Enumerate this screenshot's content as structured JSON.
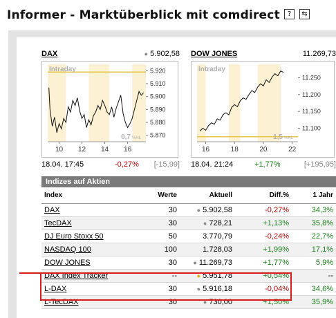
{
  "header": {
    "title": "Informer - Marktüberblick mit comdirect",
    "help_icon": "?",
    "switch_icon": "⇆"
  },
  "charts": [
    {
      "name": "DAX",
      "value": "5.902,58",
      "label": "Intraday",
      "y_ticks": [
        "5.920",
        "5.910",
        "5.900",
        "5.890",
        "5.880",
        "5.870"
      ],
      "x_ticks": [
        "10",
        "12",
        "14",
        "16"
      ],
      "vol_label": "0,7",
      "vol_unit": "%HL",
      "time": "18.04. 17:45",
      "change_pct": "-0,27%",
      "change_pts": "[-15,99]",
      "ref_line": 5919,
      "y_range": [
        5865,
        5925
      ],
      "x_range": [
        9,
        17.6
      ],
      "series": [
        [
          9.1,
          5907
        ],
        [
          9.2,
          5890
        ],
        [
          9.4,
          5877
        ],
        [
          9.6,
          5884
        ],
        [
          9.8,
          5872
        ],
        [
          10.0,
          5879
        ],
        [
          10.2,
          5875
        ],
        [
          10.4,
          5883
        ],
        [
          10.6,
          5880
        ],
        [
          10.8,
          5892
        ],
        [
          11.0,
          5888
        ],
        [
          11.2,
          5897
        ],
        [
          11.4,
          5893
        ],
        [
          11.6,
          5899
        ],
        [
          11.8,
          5889
        ],
        [
          12.0,
          5883
        ],
        [
          12.2,
          5886
        ],
        [
          12.4,
          5876
        ],
        [
          12.6,
          5882
        ],
        [
          12.8,
          5878
        ],
        [
          13.0,
          5885
        ],
        [
          13.2,
          5888
        ],
        [
          13.4,
          5893
        ],
        [
          13.6,
          5890
        ],
        [
          13.8,
          5897
        ],
        [
          14.0,
          5893
        ],
        [
          14.2,
          5888
        ],
        [
          14.4,
          5886
        ],
        [
          14.6,
          5892
        ],
        [
          14.8,
          5884
        ],
        [
          15.0,
          5891
        ],
        [
          15.2,
          5896
        ],
        [
          15.4,
          5901
        ],
        [
          15.6,
          5887
        ],
        [
          15.8,
          5880
        ],
        [
          16.0,
          5876
        ],
        [
          16.2,
          5879
        ],
        [
          16.4,
          5883
        ],
        [
          16.6,
          5890
        ],
        [
          16.8,
          5897
        ],
        [
          17.0,
          5904
        ],
        [
          17.2,
          5901
        ],
        [
          17.4,
          5903
        ]
      ]
    },
    {
      "name": "DOW JONES",
      "value": "11.269,73",
      "label": "Intraday",
      "y_ticks": [
        "11.250",
        "11.200",
        "11.150",
        "11.100"
      ],
      "x_ticks": [
        "16",
        "18",
        "20",
        "22"
      ],
      "vol_label": "1,5",
      "vol_unit": "%HL",
      "time": "18.04. 21:24",
      "change_pct": "+1,77%",
      "change_pts": "[+195,95]",
      "ref_line": 11075,
      "y_range": [
        11060,
        11290
      ],
      "x_range": [
        15.4,
        22.4
      ],
      "series": [
        [
          15.6,
          11092
        ],
        [
          15.8,
          11100
        ],
        [
          16.0,
          11094
        ],
        [
          16.2,
          11108
        ],
        [
          16.4,
          11116
        ],
        [
          16.6,
          11112
        ],
        [
          16.8,
          11128
        ],
        [
          17.0,
          11124
        ],
        [
          17.2,
          11140
        ],
        [
          17.4,
          11146
        ],
        [
          17.6,
          11140
        ],
        [
          17.8,
          11162
        ],
        [
          18.0,
          11170
        ],
        [
          18.2,
          11164
        ],
        [
          18.4,
          11182
        ],
        [
          18.6,
          11190
        ],
        [
          18.8,
          11186
        ],
        [
          19.0,
          11200
        ],
        [
          19.2,
          11212
        ],
        [
          19.4,
          11206
        ],
        [
          19.6,
          11222
        ],
        [
          19.8,
          11232
        ],
        [
          20.0,
          11226
        ],
        [
          20.2,
          11244
        ],
        [
          20.4,
          11236
        ],
        [
          20.6,
          11252
        ],
        [
          20.8,
          11262
        ],
        [
          21.0,
          11256
        ],
        [
          21.2,
          11270
        ],
        [
          21.4,
          11266
        ]
      ]
    }
  ],
  "table": {
    "header": "Indizes auf Aktien",
    "columns": [
      "Index",
      "Werte",
      "Aktuell",
      "Diff.%",
      "1 Jahr"
    ],
    "rows": [
      {
        "index": "DAX",
        "werte": "30",
        "aktuell": "5.902,58",
        "tick": "grey",
        "diff": "-0,27%",
        "diff_dir": "neg",
        "jahr": "34,3%",
        "jahr_dir": "pos"
      },
      {
        "index": "TecDAX",
        "werte": "30",
        "aktuell": "728,21",
        "tick": "grey",
        "diff": "+1,13%",
        "diff_dir": "pos",
        "jahr": "35,8%",
        "jahr_dir": "pos"
      },
      {
        "index": "DJ Euro Stoxx 50",
        "werte": "50",
        "aktuell": "3.770,79",
        "tick": "",
        "diff": "-0,24%",
        "diff_dir": "neg",
        "jahr": "22,7%",
        "jahr_dir": "pos"
      },
      {
        "index": "NASDAQ 100",
        "werte": "100",
        "aktuell": "1.728,03",
        "tick": "",
        "diff": "+1,99%",
        "diff_dir": "pos",
        "jahr": "17,1%",
        "jahr_dir": "pos"
      },
      {
        "index": "DOW JONES",
        "werte": "30",
        "aktuell": "11.269,73",
        "tick": "grey",
        "diff": "+1,77%",
        "diff_dir": "pos",
        "jahr": "5,9%",
        "jahr_dir": "pos"
      },
      {
        "index": "DAX Index Tracker",
        "werte": "--",
        "aktuell": "5.951,78",
        "tick": "gold",
        "diff": "+0,54%",
        "diff_dir": "pos",
        "jahr": "--",
        "jahr_dir": ""
      },
      {
        "index": "L-DAX",
        "werte": "30",
        "aktuell": "5.916,18",
        "tick": "grey",
        "diff": "-0,04%",
        "diff_dir": "neg",
        "jahr": "34,6%",
        "jahr_dir": "pos"
      },
      {
        "index": "L-TecDAX",
        "werte": "30",
        "aktuell": "730,00",
        "tick": "grey",
        "diff": "+1,50%",
        "diff_dir": "pos",
        "jahr": "35,9%",
        "jahr_dir": "pos"
      }
    ]
  }
}
